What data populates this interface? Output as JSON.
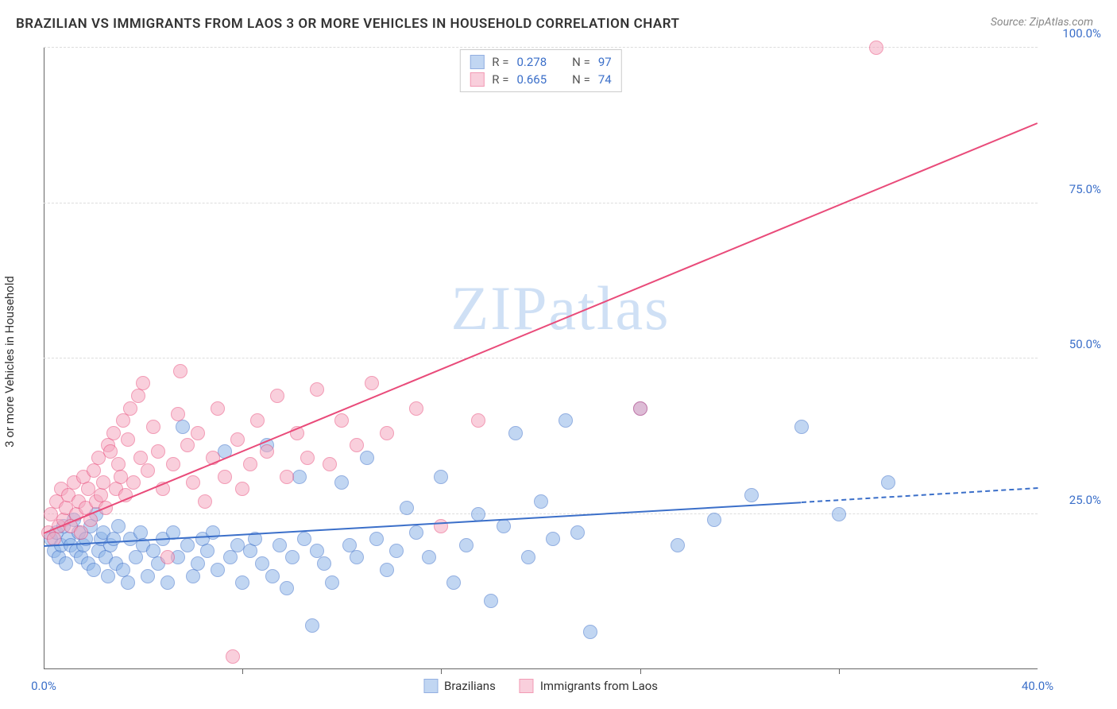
{
  "header": {
    "title": "BRAZILIAN VS IMMIGRANTS FROM LAOS 3 OR MORE VEHICLES IN HOUSEHOLD CORRELATION CHART",
    "source_prefix": "Source: ",
    "source_name": "ZipAtlas.com"
  },
  "watermark": "ZIPatlas",
  "axes": {
    "y_label": "3 or more Vehicles in Household",
    "xlim": [
      0,
      40
    ],
    "ylim": [
      0,
      100
    ],
    "x_ticks": [
      {
        "pos": 0,
        "label": "0.0%"
      },
      {
        "pos": 40,
        "label": "40.0%"
      }
    ],
    "x_minor_ticks": [
      8,
      16,
      24,
      32
    ],
    "y_ticks": [
      {
        "pos": 25,
        "label": "25.0%"
      },
      {
        "pos": 50,
        "label": "50.0%"
      },
      {
        "pos": 75,
        "label": "75.0%"
      },
      {
        "pos": 100,
        "label": "100.0%"
      }
    ],
    "grid_color": "#dddddd",
    "axis_color": "#666666",
    "tick_label_color": "#3b6fc9"
  },
  "series": [
    {
      "id": "brazilians",
      "label": "Brazilians",
      "fill_color": "#8fb6e8",
      "fill_opacity": 0.55,
      "stroke_color": "#3b6fc9",
      "marker_radius": 9,
      "R": "0.278",
      "N": "97",
      "trend": {
        "x0": 0,
        "y0": 20,
        "x1": 30.5,
        "y1": 27,
        "dash_to_x": 40,
        "dash_to_y": 29.3
      },
      "points": [
        [
          0.3,
          21
        ],
        [
          0.4,
          19
        ],
        [
          0.5,
          22
        ],
        [
          0.6,
          18
        ],
        [
          0.7,
          20
        ],
        [
          0.8,
          23
        ],
        [
          0.9,
          17
        ],
        [
          1.0,
          21
        ],
        [
          1.1,
          20
        ],
        [
          1.2,
          24
        ],
        [
          1.3,
          19
        ],
        [
          1.4,
          22
        ],
        [
          1.5,
          18
        ],
        [
          1.6,
          20
        ],
        [
          1.7,
          21
        ],
        [
          1.8,
          17
        ],
        [
          1.9,
          23
        ],
        [
          2.0,
          16
        ],
        [
          2.1,
          25
        ],
        [
          2.2,
          19
        ],
        [
          2.3,
          21
        ],
        [
          2.4,
          22
        ],
        [
          2.5,
          18
        ],
        [
          2.6,
          15
        ],
        [
          2.7,
          20
        ],
        [
          2.8,
          21
        ],
        [
          2.9,
          17
        ],
        [
          3.0,
          23
        ],
        [
          3.2,
          16
        ],
        [
          3.4,
          14
        ],
        [
          3.5,
          21
        ],
        [
          3.7,
          18
        ],
        [
          3.9,
          22
        ],
        [
          4.0,
          20
        ],
        [
          4.2,
          15
        ],
        [
          4.4,
          19
        ],
        [
          4.6,
          17
        ],
        [
          4.8,
          21
        ],
        [
          5.0,
          14
        ],
        [
          5.2,
          22
        ],
        [
          5.4,
          18
        ],
        [
          5.6,
          39
        ],
        [
          5.8,
          20
        ],
        [
          6.0,
          15
        ],
        [
          6.2,
          17
        ],
        [
          6.4,
          21
        ],
        [
          6.6,
          19
        ],
        [
          6.8,
          22
        ],
        [
          7.0,
          16
        ],
        [
          7.3,
          35
        ],
        [
          7.5,
          18
        ],
        [
          7.8,
          20
        ],
        [
          8.0,
          14
        ],
        [
          8.3,
          19
        ],
        [
          8.5,
          21
        ],
        [
          8.8,
          17
        ],
        [
          9.0,
          36
        ],
        [
          9.2,
          15
        ],
        [
          9.5,
          20
        ],
        [
          9.8,
          13
        ],
        [
          10.0,
          18
        ],
        [
          10.3,
          31
        ],
        [
          10.5,
          21
        ],
        [
          10.8,
          7
        ],
        [
          11.0,
          19
        ],
        [
          11.3,
          17
        ],
        [
          11.6,
          14
        ],
        [
          12.0,
          30
        ],
        [
          12.3,
          20
        ],
        [
          12.6,
          18
        ],
        [
          13.0,
          34
        ],
        [
          13.4,
          21
        ],
        [
          13.8,
          16
        ],
        [
          14.2,
          19
        ],
        [
          14.6,
          26
        ],
        [
          15.0,
          22
        ],
        [
          15.5,
          18
        ],
        [
          16.0,
          31
        ],
        [
          16.5,
          14
        ],
        [
          17.0,
          20
        ],
        [
          17.5,
          25
        ],
        [
          18.0,
          11
        ],
        [
          18.5,
          23
        ],
        [
          19.0,
          38
        ],
        [
          19.5,
          18
        ],
        [
          20.0,
          27
        ],
        [
          20.5,
          21
        ],
        [
          21.0,
          40
        ],
        [
          21.5,
          22
        ],
        [
          22.0,
          6
        ],
        [
          24.0,
          42
        ],
        [
          25.5,
          20
        ],
        [
          27.0,
          24
        ],
        [
          28.5,
          28
        ],
        [
          30.5,
          39
        ],
        [
          32.0,
          25
        ],
        [
          34.0,
          30
        ]
      ]
    },
    {
      "id": "laos",
      "label": "Immigrants from Laos",
      "fill_color": "#f5a8c0",
      "fill_opacity": 0.55,
      "stroke_color": "#e94b7a",
      "marker_radius": 9,
      "R": "0.665",
      "N": "74",
      "trend": {
        "x0": 0,
        "y0": 22,
        "x1": 40,
        "y1": 88
      },
      "points": [
        [
          0.2,
          22
        ],
        [
          0.3,
          25
        ],
        [
          0.4,
          21
        ],
        [
          0.5,
          27
        ],
        [
          0.6,
          23
        ],
        [
          0.7,
          29
        ],
        [
          0.8,
          24
        ],
        [
          0.9,
          26
        ],
        [
          1.0,
          28
        ],
        [
          1.1,
          23
        ],
        [
          1.2,
          30
        ],
        [
          1.3,
          25
        ],
        [
          1.4,
          27
        ],
        [
          1.5,
          22
        ],
        [
          1.6,
          31
        ],
        [
          1.7,
          26
        ],
        [
          1.8,
          29
        ],
        [
          1.9,
          24
        ],
        [
          2.0,
          32
        ],
        [
          2.1,
          27
        ],
        [
          2.2,
          34
        ],
        [
          2.3,
          28
        ],
        [
          2.4,
          30
        ],
        [
          2.5,
          26
        ],
        [
          2.6,
          36
        ],
        [
          2.7,
          35
        ],
        [
          2.8,
          38
        ],
        [
          2.9,
          29
        ],
        [
          3.0,
          33
        ],
        [
          3.1,
          31
        ],
        [
          3.2,
          40
        ],
        [
          3.3,
          28
        ],
        [
          3.4,
          37
        ],
        [
          3.5,
          42
        ],
        [
          3.6,
          30
        ],
        [
          3.8,
          44
        ],
        [
          3.9,
          34
        ],
        [
          4.0,
          46
        ],
        [
          4.2,
          32
        ],
        [
          4.4,
          39
        ],
        [
          4.6,
          35
        ],
        [
          4.8,
          29
        ],
        [
          5.0,
          18
        ],
        [
          5.2,
          33
        ],
        [
          5.4,
          41
        ],
        [
          5.5,
          48
        ],
        [
          5.8,
          36
        ],
        [
          6.0,
          30
        ],
        [
          6.2,
          38
        ],
        [
          6.5,
          27
        ],
        [
          6.8,
          34
        ],
        [
          7.0,
          42
        ],
        [
          7.3,
          31
        ],
        [
          7.6,
          2
        ],
        [
          7.8,
          37
        ],
        [
          8.0,
          29
        ],
        [
          8.3,
          33
        ],
        [
          8.6,
          40
        ],
        [
          9.0,
          35
        ],
        [
          9.4,
          44
        ],
        [
          9.8,
          31
        ],
        [
          10.2,
          38
        ],
        [
          10.6,
          34
        ],
        [
          11.0,
          45
        ],
        [
          11.5,
          33
        ],
        [
          12.0,
          40
        ],
        [
          12.6,
          36
        ],
        [
          13.2,
          46
        ],
        [
          13.8,
          38
        ],
        [
          15.0,
          42
        ],
        [
          16.0,
          23
        ],
        [
          17.5,
          40
        ],
        [
          24.0,
          42
        ],
        [
          33.5,
          100
        ]
      ]
    }
  ],
  "legend_top": {
    "R_label": "R =",
    "N_label": "N ="
  }
}
